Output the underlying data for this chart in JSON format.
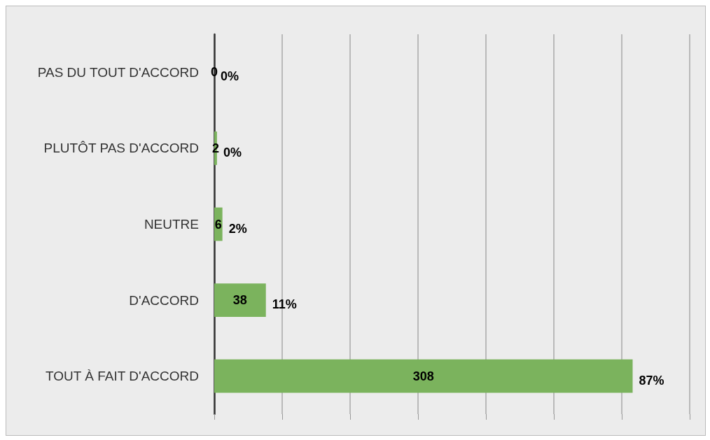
{
  "chart_data": {
    "type": "bar",
    "orientation": "horizontal",
    "categories": [
      "PAS DU TOUT D'ACCORD",
      "PLUTÔT PAS D'ACCORD",
      "NEUTRE",
      "D'ACCORD",
      "TOUT À FAIT D'ACCORD"
    ],
    "values": [
      0,
      2,
      6,
      38,
      308
    ],
    "color": "#7bb35d",
    "data_labels": true,
    "xlim": [
      0,
      350
    ],
    "xticks": [
      {
        "value": 0,
        "label": null
      },
      {
        "value": 50,
        "label": null
      },
      {
        "value": 100,
        "label": null
      },
      {
        "value": 150,
        "label": null
      },
      {
        "value": 200,
        "label": null
      },
      {
        "value": 250,
        "label": null
      },
      {
        "value": 300,
        "label": null
      },
      {
        "value": 350,
        "label": null
      }
    ],
    "tick_labels": "y",
    "grid": "x",
    "annotations": [
      {
        "text": "0%",
        "x": 0,
        "y": "PAS DU TOUT D'ACCORD"
      },
      {
        "text": "0%",
        "x": 2,
        "y": "PLUTÔT PAS D'ACCORD"
      },
      {
        "text": "2%",
        "x": 6,
        "y": "NEUTRE"
      },
      {
        "text": "11%",
        "x": 38,
        "y": "D'ACCORD"
      },
      {
        "text": "87%",
        "x": 308,
        "y": "TOUT À FAIT D'ACCORD"
      }
    ]
  }
}
